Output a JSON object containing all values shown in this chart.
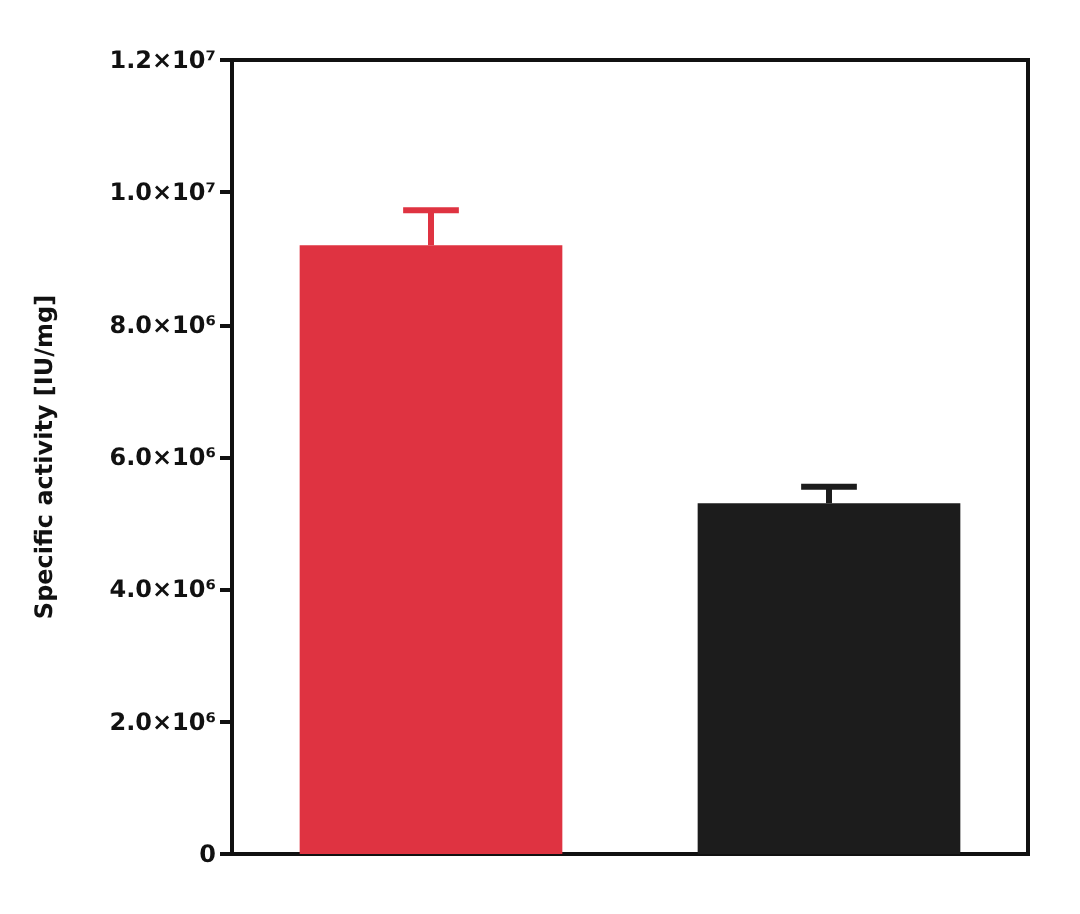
{
  "chart_data": {
    "type": "bar",
    "ylabel": "Specific activity [IU/mg]",
    "categories": [
      null,
      null
    ],
    "values": [
      9200000,
      5300000
    ],
    "colors": [
      "#df3341",
      "#1c1c1c"
    ],
    "errors": [
      [
        9200000,
        9730000
      ],
      [
        5300000,
        5550000
      ]
    ],
    "ylim": [
      0,
      12000000
    ],
    "yticks": [
      0,
      {
        "value": 2000000,
        "label": "2.0×10⁶"
      },
      {
        "value": 4000000,
        "label": "4.0×10⁶"
      },
      {
        "value": 6000000,
        "label": "6.0×10⁶"
      },
      {
        "value": 8000000,
        "label": "8.0×10⁶"
      },
      {
        "value": 10000000,
        "label": "1.0×10⁷"
      },
      {
        "value": 12000000,
        "label": "1.2×10⁷"
      }
    ],
    "grid": false
  }
}
